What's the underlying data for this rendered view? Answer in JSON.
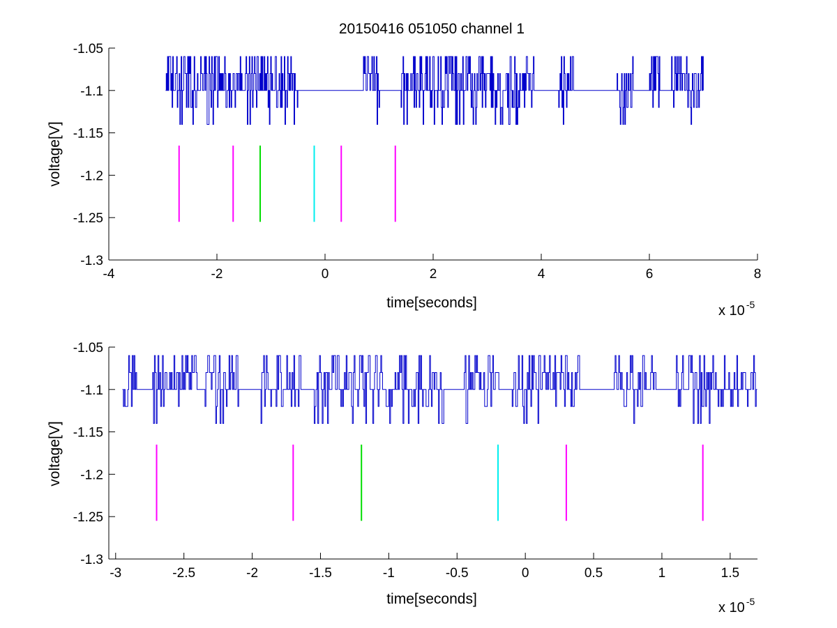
{
  "title": "20150416 051050 channel 1",
  "colors": {
    "signal": "#0000cc",
    "marker_magenta": "#ff00ff",
    "marker_green": "#00dd00",
    "marker_cyan": "#00eeee",
    "axis": "#000000"
  },
  "chart_data": [
    {
      "type": "line",
      "title": "20150416 051050 channel 1",
      "xlabel": "time[seconds]",
      "ylabel": "voltage[V]",
      "x_multiplier_label": "x 10",
      "x_multiplier_exponent": "-5",
      "xlim": [
        -4,
        8
      ],
      "ylim": [
        -1.3,
        -1.05
      ],
      "x_ticks": [
        -4,
        -2,
        0,
        2,
        4,
        6,
        8
      ],
      "x_tick_labels": [
        "-4",
        "-2",
        "0",
        "2",
        "4",
        "6",
        "8"
      ],
      "y_ticks": [
        -1.3,
        -1.25,
        -1.2,
        -1.15,
        -1.1,
        -1.05
      ],
      "y_tick_labels": [
        "-1.3",
        "-1.25",
        "-1.2",
        "-1.15",
        "-1.1",
        "-1.05"
      ],
      "grid": false,
      "series": [
        {
          "kind": "quantized-noise",
          "color": "#0000cc",
          "x_range": [
            -2.95,
            7.0
          ],
          "baseline": -1.1,
          "levels": [
            -1.14,
            -1.12,
            -1.1,
            -1.08,
            -1.06
          ],
          "quiet_intervals": [
            [
              -0.5,
              0.7
            ],
            [
              1.0,
              1.4
            ],
            [
              3.9,
              4.3
            ],
            [
              4.6,
              5.4
            ],
            [
              5.7,
              6.0
            ],
            [
              6.2,
              6.4
            ]
          ]
        }
      ],
      "markers": [
        {
          "x": -2.7,
          "y": [
            -1.255,
            -1.165
          ],
          "color": "#ff00ff"
        },
        {
          "x": -1.7,
          "y": [
            -1.255,
            -1.165
          ],
          "color": "#ff00ff"
        },
        {
          "x": -1.2,
          "y": [
            -1.255,
            -1.165
          ],
          "color": "#00dd00"
        },
        {
          "x": -0.2,
          "y": [
            -1.255,
            -1.165
          ],
          "color": "#00eeee"
        },
        {
          "x": 0.3,
          "y": [
            -1.255,
            -1.165
          ],
          "color": "#ff00ff"
        },
        {
          "x": 1.3,
          "y": [
            -1.255,
            -1.165
          ],
          "color": "#ff00ff"
        }
      ]
    },
    {
      "type": "line",
      "title": "",
      "xlabel": "time[seconds]",
      "ylabel": "voltage[V]",
      "x_multiplier_label": "x 10",
      "x_multiplier_exponent": "-5",
      "xlim": [
        -3.05,
        1.7
      ],
      "ylim": [
        -1.3,
        -1.05
      ],
      "x_ticks": [
        -3,
        -2.5,
        -2,
        -1.5,
        -1,
        -0.5,
        0,
        0.5,
        1,
        1.5
      ],
      "x_tick_labels": [
        "-3",
        "-2.5",
        "-2",
        "-1.5",
        "-1",
        "-0.5",
        "0",
        "0.5",
        "1",
        "1.5"
      ],
      "y_ticks": [
        -1.3,
        -1.25,
        -1.2,
        -1.15,
        -1.1,
        -1.05
      ],
      "y_tick_labels": [
        "-1.3",
        "-1.25",
        "-1.2",
        "-1.15",
        "-1.1",
        "-1.05"
      ],
      "grid": false,
      "series": [
        {
          "kind": "quantized-noise",
          "color": "#0000cc",
          "x_range": [
            -2.95,
            1.7
          ],
          "baseline": -1.1,
          "levels": [
            -1.14,
            -1.12,
            -1.1,
            -1.08,
            -1.06
          ],
          "quiet_intervals": [
            [
              -2.85,
              -2.75
            ],
            [
              -2.4,
              -2.35
            ],
            [
              -2.1,
              -1.95
            ],
            [
              -1.65,
              -1.55
            ],
            [
              -0.6,
              -0.45
            ],
            [
              -0.2,
              -0.1
            ],
            [
              0.4,
              0.65
            ],
            [
              0.95,
              1.1
            ]
          ]
        }
      ],
      "markers": [
        {
          "x": -2.7,
          "y": [
            -1.255,
            -1.165
          ],
          "color": "#ff00ff"
        },
        {
          "x": -1.7,
          "y": [
            -1.255,
            -1.165
          ],
          "color": "#ff00ff"
        },
        {
          "x": -1.2,
          "y": [
            -1.255,
            -1.165
          ],
          "color": "#00dd00"
        },
        {
          "x": -0.2,
          "y": [
            -1.255,
            -1.165
          ],
          "color": "#00eeee"
        },
        {
          "x": 0.3,
          "y": [
            -1.255,
            -1.165
          ],
          "color": "#ff00ff"
        },
        {
          "x": 1.3,
          "y": [
            -1.255,
            -1.165
          ],
          "color": "#ff00ff"
        }
      ]
    }
  ]
}
